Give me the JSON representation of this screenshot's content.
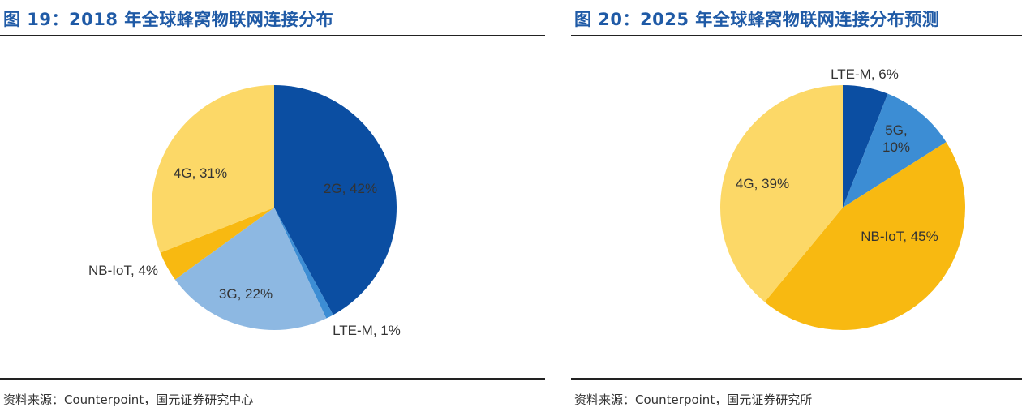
{
  "charts": [
    {
      "figure_title": "图 19：2018 年全球蜂窝物联网连接分布",
      "source": "资料来源：Counterpoint，国元证券研究中心"
    },
    {
      "figure_title": "图 20：2025 年全球蜂窝物联网连接分布预测",
      "source": "资料来源：Counterpoint，国元证券研究所"
    }
  ],
  "chart_data": [
    {
      "type": "pie",
      "title": "图 19：2018 年全球蜂窝物联网连接分布",
      "slices": [
        {
          "label": "2G, 42%",
          "name": "2G",
          "value": 42,
          "color": "#0b4ea2"
        },
        {
          "label": "LTE-M, 1%",
          "name": "LTE-M",
          "value": 1,
          "color": "#3c8dd4"
        },
        {
          "label": "3G, 22%",
          "name": "3G",
          "value": 22,
          "color": "#8db8e2"
        },
        {
          "label": "NB-IoT, 4%",
          "name": "NB-IoT",
          "value": 4,
          "color": "#f8b911"
        },
        {
          "label": "4G, 31%",
          "name": "4G",
          "value": 31,
          "color": "#fcd867"
        }
      ]
    },
    {
      "type": "pie",
      "title": "图 20：2025 年全球蜂窝物联网连接分布预测",
      "slices": [
        {
          "label": "LTE-M, 6%",
          "name": "LTE-M",
          "value": 6,
          "color": "#0b4ea2"
        },
        {
          "label": "5G,",
          "label2": "10%",
          "name": "5G",
          "value": 10,
          "color": "#3c8dd4"
        },
        {
          "label": "NB-IoT, 45%",
          "name": "NB-IoT",
          "value": 45,
          "color": "#f8b911"
        },
        {
          "label": "4G, 39%",
          "name": "4G",
          "value": 39,
          "color": "#fcd867"
        }
      ]
    }
  ]
}
